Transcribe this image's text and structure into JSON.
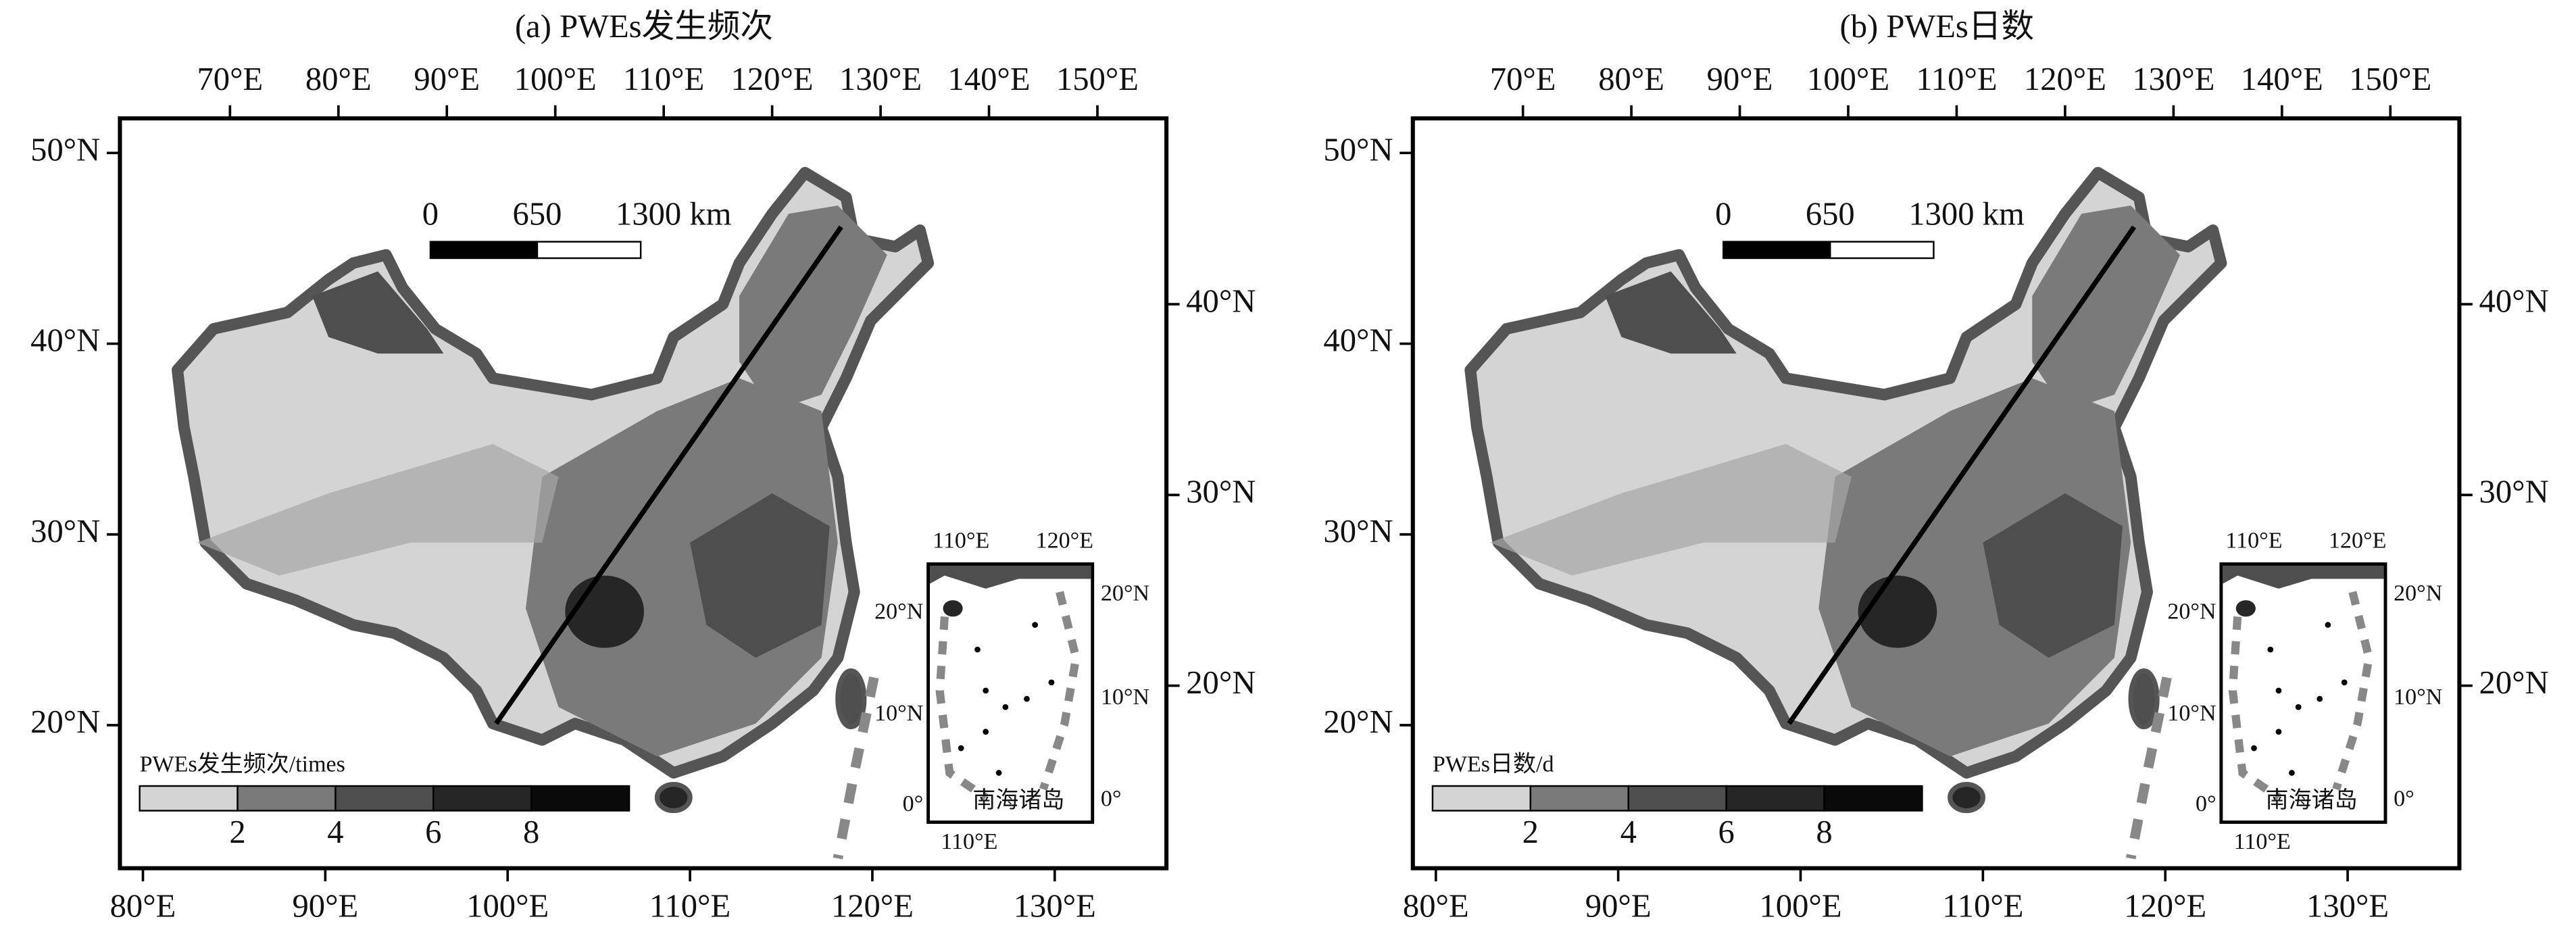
{
  "panels": [
    {
      "title": "(a) PWEs发生频次",
      "top_longitudes": [
        "70°E",
        "80°E",
        "90°E",
        "100°E",
        "110°E",
        "120°E",
        "130°E",
        "140°E",
        "150°E"
      ],
      "bottom_longitudes": [
        "80°E",
        "90°E",
        "100°E",
        "110°E",
        "120°E",
        "130°E"
      ],
      "left_latitudes": [
        "50°N",
        "40°N",
        "30°N",
        "20°N"
      ],
      "right_latitudes": [
        "40°N",
        "30°N",
        "20°N"
      ],
      "scale_bar": [
        "0",
        "650",
        "1300 km"
      ],
      "legend": {
        "title": "PWEs发生频次/times",
        "ticks": [
          "2",
          "4",
          "6",
          "8"
        ]
      },
      "inset": {
        "name": "南海诸岛",
        "top_longitudes": [
          "110°E",
          "120°E"
        ],
        "left_latitudes": [
          "20°N",
          "10°N",
          "0°"
        ],
        "right_latitudes": [
          "20°N",
          "10°N",
          "0°"
        ],
        "bottom_longitude": "110°E"
      }
    },
    {
      "title": "(b) PWEs日数",
      "top_longitudes": [
        "70°E",
        "80°E",
        "90°E",
        "100°E",
        "110°E",
        "120°E",
        "130°E",
        "140°E",
        "150°E"
      ],
      "bottom_longitudes": [
        "80°E",
        "90°E",
        "100°E",
        "110°E",
        "120°E",
        "130°E"
      ],
      "left_latitudes": [
        "50°N",
        "40°N",
        "30°N",
        "20°N"
      ],
      "right_latitudes": [
        "40°N",
        "30°N",
        "20°N"
      ],
      "scale_bar": [
        "0",
        "650",
        "1300 km"
      ],
      "legend": {
        "title": "PWEs日数/d",
        "ticks": [
          "2",
          "4",
          "6",
          "8"
        ]
      },
      "inset": {
        "name": "南海诸岛",
        "top_longitudes": [
          "110°E",
          "120°E"
        ],
        "left_latitudes": [
          "20°N",
          "10°N",
          "0°"
        ],
        "right_latitudes": [
          "20°N",
          "10°N",
          "0°"
        ],
        "bottom_longitude": "110°E"
      }
    }
  ]
}
